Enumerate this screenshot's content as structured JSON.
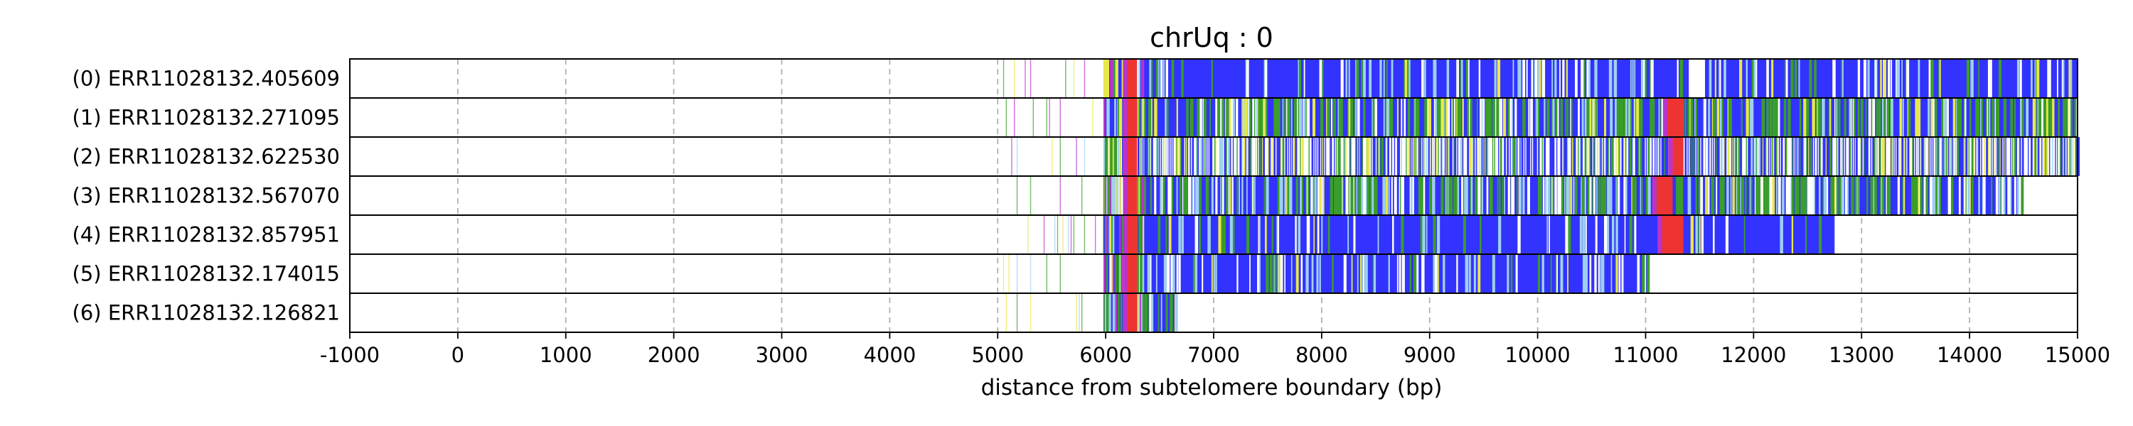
{
  "chart_data": {
    "type": "heatmap",
    "title": "chrUq : 0",
    "xlabel": "distance from subtelomere boundary (bp)",
    "xlim": [
      -1000,
      15000
    ],
    "xticks": [
      "-1000",
      "0",
      "1000",
      "2000",
      "3000",
      "4000",
      "5000",
      "6000",
      "7000",
      "8000",
      "9000",
      "10000",
      "11000",
      "12000",
      "13000",
      "14000",
      "15000"
    ],
    "grid": "vertical dashed",
    "colors": {
      "dominant": "#3333ff",
      "green": "#3a9e2a",
      "yellow": "#e8e84a",
      "red": "#ee3333",
      "magenta": "#bb33cc",
      "light_blue": "#9fd0ee",
      "white": "#ffffff"
    },
    "reads": [
      {
        "label": "(0) ERR11028132.405609",
        "start": 5000,
        "end": 15000,
        "gaps": [
          [
            11400,
            11550
          ]
        ],
        "red": [
          [
            6200,
            6290
          ]
        ],
        "green_density": 0.04,
        "yellow_density": 0.01,
        "white_density": 0.12,
        "red_density": 0.0,
        "mixed": false
      },
      {
        "label": "(1) ERR11028132.271095",
        "start": 5000,
        "end": 15000,
        "gaps": [],
        "red": [
          [
            6200,
            6290
          ],
          [
            11200,
            11350
          ]
        ],
        "green_density": 0.18,
        "yellow_density": 0.05,
        "white_density": 0.12,
        "red_density": 0.005,
        "mixed": false
      },
      {
        "label": "(2) ERR11028132.622530",
        "start": 5000,
        "end": 15000,
        "gaps": [],
        "red": [
          [
            6200,
            6290
          ],
          [
            11250,
            11350
          ]
        ],
        "green_density": 0.14,
        "yellow_density": 0.1,
        "white_density": 0.35,
        "red_density": 0.01,
        "mixed": true
      },
      {
        "label": "(3) ERR11028132.567070",
        "start": 5000,
        "end": 14480,
        "gaps": [],
        "red": [
          [
            6200,
            6290
          ],
          [
            11100,
            11250
          ]
        ],
        "green_density": 0.2,
        "yellow_density": 0.03,
        "white_density": 0.18,
        "red_density": 0.005,
        "mixed": false
      },
      {
        "label": "(4) ERR11028132.857951",
        "start": 5000,
        "end": 12750,
        "gaps": [],
        "red": [
          [
            6200,
            6290
          ],
          [
            11150,
            11350
          ]
        ],
        "green_density": 0.03,
        "yellow_density": 0.01,
        "white_density": 0.08,
        "red_density": 0.0,
        "mixed": false
      },
      {
        "label": "(5) ERR11028132.174015",
        "start": 5000,
        "end": 11020,
        "gaps": [],
        "red": [
          [
            6200,
            6290
          ]
        ],
        "green_density": 0.03,
        "yellow_density": 0.01,
        "white_density": 0.14,
        "red_density": 0.0,
        "mixed": false
      },
      {
        "label": "(6) ERR11028132.126821",
        "start": 5000,
        "end": 6650,
        "gaps": [],
        "red": [
          [
            6200,
            6290
          ]
        ],
        "green_density": 0.18,
        "yellow_density": 0.03,
        "white_density": 0.1,
        "red_density": 0.0,
        "mixed": false
      }
    ]
  }
}
